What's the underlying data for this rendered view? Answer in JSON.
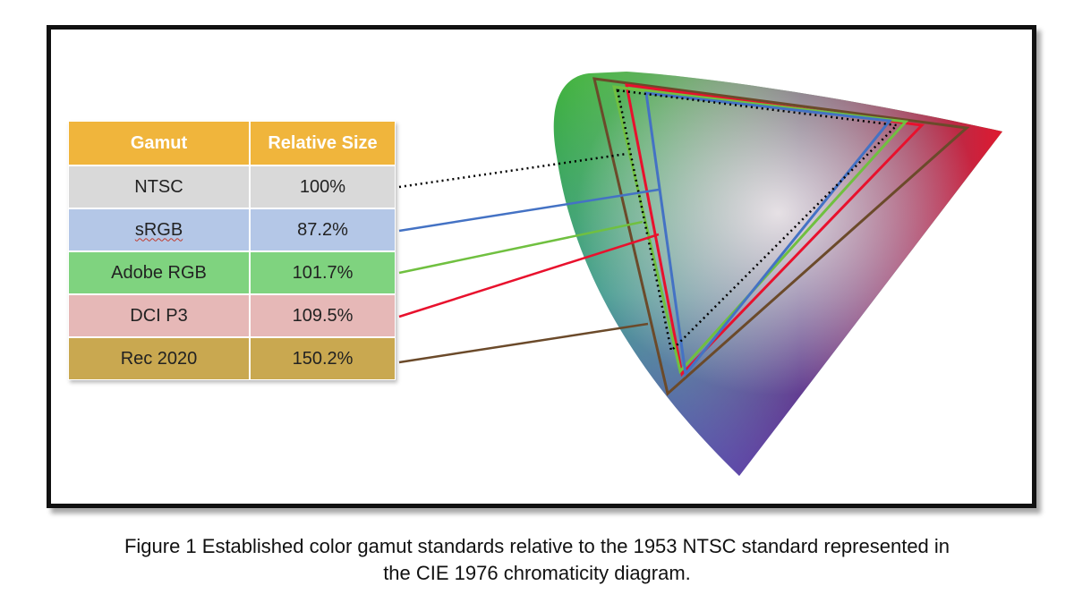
{
  "table": {
    "headers": [
      "Gamut",
      "Relative Size"
    ],
    "rows": [
      {
        "gamut": "NTSC",
        "relative_size": "100%",
        "row_color": "#d9d9d9",
        "line_color": "#000000",
        "line_style": "dotted"
      },
      {
        "gamut": "sRGB",
        "relative_size": "87.2%",
        "row_color": "#b4c7e7",
        "line_color": "#4472c4",
        "line_style": "solid"
      },
      {
        "gamut": "Adobe RGB",
        "relative_size": "101.7%",
        "row_color": "#7fd37f",
        "line_color": "#70c040",
        "line_style": "solid"
      },
      {
        "gamut": "DCI P3",
        "relative_size": "109.5%",
        "row_color": "#e6b8b7",
        "line_color": "#e8112d",
        "line_style": "solid"
      },
      {
        "gamut": "Rec 2020",
        "relative_size": "150.2%",
        "row_color": "#c9a850",
        "line_color": "#6b4a2a",
        "line_style": "solid"
      }
    ]
  },
  "diagram": {
    "name": "CIE 1976 chromaticity diagram",
    "spectral_colors": {
      "green": "#3fb23a",
      "red": "#e8112d",
      "blue": "#2c3fa8",
      "magenta": "#8a1a8a",
      "white": "#f0e6ea"
    }
  },
  "caption": {
    "line1": "Figure 1 Established color gamut standards relative to the 1953 NTSC standard represented in",
    "line2": "the CIE 1976 chromaticity diagram."
  }
}
